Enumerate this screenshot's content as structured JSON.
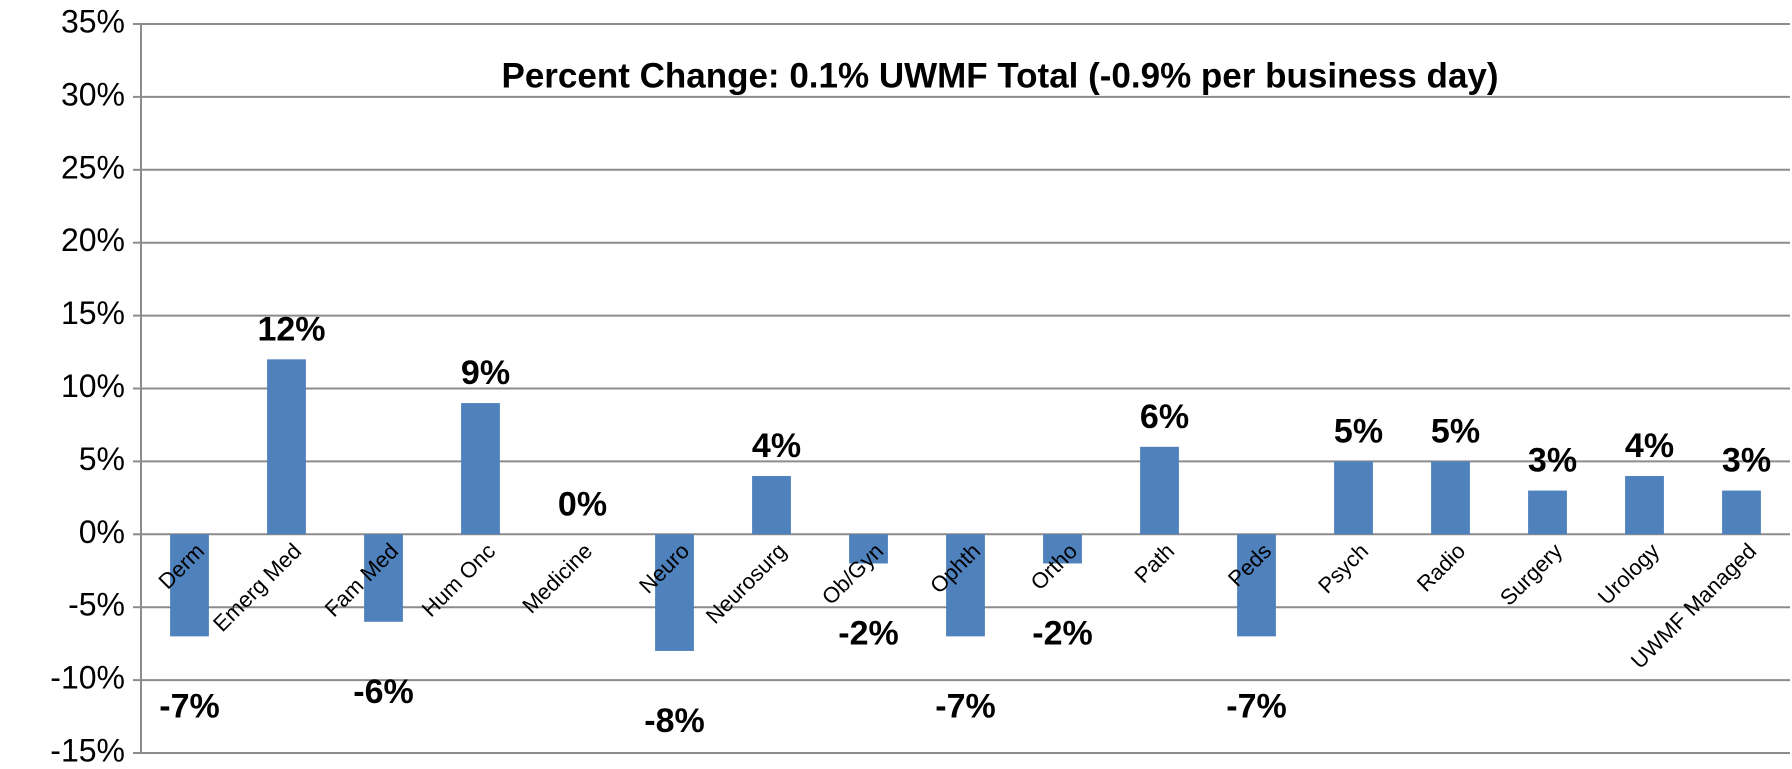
{
  "chart_data": {
    "type": "bar",
    "title": "Percent Change: 0.1% UWMF Total (-0.9% per business day)",
    "categories": [
      "Derm",
      "Emerg Med",
      "Fam Med",
      "Hum Onc",
      "Medicine",
      "Neuro",
      "Neurosurg",
      "Ob/Gyn",
      "Ophth",
      "Ortho",
      "Path",
      "Peds",
      "Psych",
      "Radio",
      "Surgery",
      "Urology",
      "UWMF Managed"
    ],
    "values": [
      -7,
      12,
      -6,
      9,
      0,
      -8,
      4,
      -2,
      -7,
      -2,
      6,
      -7,
      5,
      5,
      3,
      4,
      3
    ],
    "value_labels": [
      "-7%",
      "12%",
      "-6%",
      "9%",
      "0%",
      "-8%",
      "4%",
      "-2%",
      "-7%",
      "-2%",
      "6%",
      "-7%",
      "5%",
      "5%",
      "3%",
      "4%",
      "3%"
    ],
    "color": "#4f81bd",
    "ylim": [
      -15,
      35
    ],
    "yticks": [
      {
        "value": -15,
        "label": "-15%"
      },
      {
        "value": -10,
        "label": "-10%"
      },
      {
        "value": -5,
        "label": "-5%"
      },
      {
        "value": 0,
        "label": "0%"
      },
      {
        "value": 5,
        "label": "5%"
      },
      {
        "value": 10,
        "label": "10%"
      },
      {
        "value": 15,
        "label": "15%"
      },
      {
        "value": 20,
        "label": "20%"
      },
      {
        "value": 25,
        "label": "25%"
      },
      {
        "value": 30,
        "label": "30%"
      },
      {
        "value": 35,
        "label": "35%"
      }
    ],
    "grid": true
  }
}
